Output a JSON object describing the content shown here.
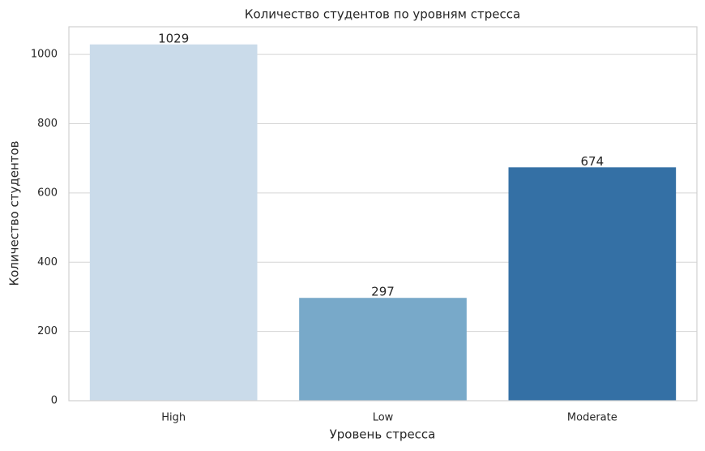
{
  "chart_data": {
    "type": "bar",
    "title": "Количество студентов по уровням стресса",
    "x_label": "Уровень стресса",
    "y_label": "Количество студентов",
    "categories": [
      "High",
      "Low",
      "Moderate"
    ],
    "values": [
      1029,
      297,
      674
    ],
    "colors": [
      "#cadbea",
      "#78a9c9",
      "#3470a5"
    ],
    "ylim": [
      0,
      1080
    ],
    "yticks": [
      0,
      200,
      400,
      600,
      800,
      1000
    ],
    "grid": true
  }
}
